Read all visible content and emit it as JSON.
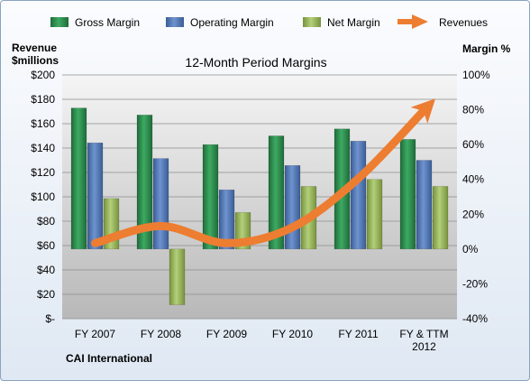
{
  "chart_data": {
    "type": "bar",
    "title": "12-Month Period Margins",
    "company": "CAI International",
    "categories": [
      "FY 2007",
      "FY 2008",
      "FY 2009",
      "FY 2010",
      "FY 2011",
      "FY & TTM 2012"
    ],
    "left_axis": {
      "label_line1": "Revenue",
      "label_line2": "$millions",
      "min": 0,
      "max": 200,
      "ticks": [
        "$-",
        "$20",
        "$40",
        "$60",
        "$80",
        "$100",
        "$120",
        "$140",
        "$160",
        "$180",
        "$200"
      ]
    },
    "right_axis": {
      "label": "Margin %",
      "min": -40,
      "max": 100,
      "ticks": [
        "-40%",
        "-20%",
        "0%",
        "20%",
        "40%",
        "60%",
        "80%",
        "100%"
      ]
    },
    "series": [
      {
        "name": "Gross Margin",
        "color": "#2e8b4e",
        "values": [
          81,
          77,
          60,
          65,
          69,
          63
        ]
      },
      {
        "name": "Operating Margin",
        "color": "#4f76b5",
        "values": [
          61,
          52,
          34,
          48,
          62,
          51
        ]
      },
      {
        "name": "Net Margin",
        "color": "#9bbb59",
        "values": [
          29,
          -32,
          21,
          36,
          40,
          36
        ]
      }
    ],
    "revenues": {
      "name": "Revenues",
      "color": "#ed7d31",
      "values": [
        62,
        76,
        62,
        75,
        115,
        171
      ]
    },
    "legend_placement": "top",
    "grid": true
  }
}
